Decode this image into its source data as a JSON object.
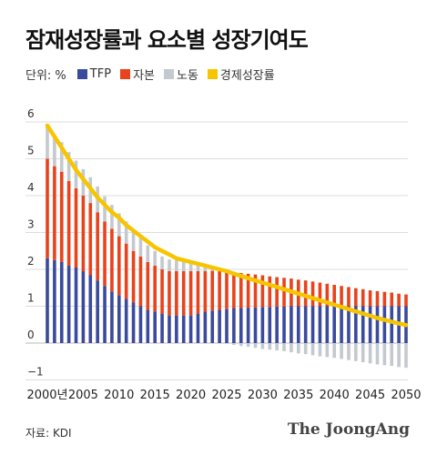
{
  "title": "잠재성장률과 요소별 성장기여도",
  "legend": {
    "unit_label": "단위: %",
    "items": [
      {
        "label": "TFP",
        "color": "#3a4a9c"
      },
      {
        "label": "자본",
        "color": "#e8431c"
      },
      {
        "label": "노동",
        "color": "#c4c9cf"
      },
      {
        "label": "경제성장률",
        "color": "#f7c500"
      }
    ]
  },
  "source": "자료: KDI",
  "brand": "The JoongAng",
  "chart_data": {
    "type": "bar",
    "stacked": true,
    "ylim": [
      -1.2,
      6
    ],
    "y_ticks": [
      6,
      5,
      4,
      3,
      2,
      1,
      0,
      -1
    ],
    "y_tick_labels": [
      "6",
      "5",
      "4",
      "3",
      "2",
      "1",
      "0",
      "−1"
    ],
    "x_tick_labels": [
      "2000년",
      "2005",
      "2010",
      "2015",
      "2020",
      "2025",
      "2030",
      "2035",
      "2040",
      "2045",
      "2050"
    ],
    "x_tick_years": [
      2000,
      2005,
      2010,
      2015,
      2020,
      2025,
      2030,
      2035,
      2040,
      2045,
      2050
    ],
    "years": [
      2000,
      2001,
      2002,
      2003,
      2004,
      2005,
      2006,
      2007,
      2008,
      2009,
      2010,
      2011,
      2012,
      2013,
      2014,
      2015,
      2016,
      2017,
      2018,
      2019,
      2020,
      2021,
      2022,
      2023,
      2024,
      2025,
      2026,
      2027,
      2028,
      2029,
      2030,
      2031,
      2032,
      2033,
      2034,
      2035,
      2036,
      2037,
      2038,
      2039,
      2040,
      2041,
      2042,
      2043,
      2044,
      2045,
      2046,
      2047,
      2048,
      2049,
      2050
    ],
    "series": [
      {
        "name": "TFP",
        "color": "#3a4a9c",
        "values": [
          2.3,
          2.25,
          2.2,
          2.1,
          2.05,
          1.95,
          1.85,
          1.7,
          1.55,
          1.4,
          1.3,
          1.2,
          1.1,
          1.0,
          0.9,
          0.85,
          0.8,
          0.75,
          0.75,
          0.75,
          0.75,
          0.8,
          0.85,
          0.88,
          0.9,
          0.92,
          0.95,
          0.95,
          0.96,
          0.97,
          0.98,
          0.98,
          0.99,
          0.99,
          1.0,
          1.0,
          1.0,
          1.0,
          1.0,
          1.0,
          1.0,
          1.0,
          1.0,
          1.0,
          1.0,
          1.0,
          1.0,
          1.0,
          1.0,
          1.0,
          1.0
        ]
      },
      {
        "name": "자본",
        "color": "#e8431c",
        "values": [
          2.7,
          2.55,
          2.45,
          2.3,
          2.15,
          2.05,
          1.95,
          1.85,
          1.75,
          1.7,
          1.6,
          1.5,
          1.4,
          1.35,
          1.3,
          1.25,
          1.2,
          1.2,
          1.2,
          1.2,
          1.2,
          1.15,
          1.1,
          1.08,
          1.05,
          1.02,
          0.98,
          0.95,
          0.92,
          0.89,
          0.86,
          0.83,
          0.8,
          0.78,
          0.75,
          0.72,
          0.7,
          0.67,
          0.64,
          0.61,
          0.58,
          0.55,
          0.52,
          0.49,
          0.46,
          0.43,
          0.41,
          0.39,
          0.37,
          0.34,
          0.32
        ]
      },
      {
        "name": "노동",
        "color": "#c4c9cf",
        "values": [
          0.9,
          0.85,
          0.8,
          0.78,
          0.75,
          0.72,
          0.7,
          0.7,
          0.68,
          0.65,
          0.62,
          0.6,
          0.55,
          0.5,
          0.45,
          0.4,
          0.35,
          0.32,
          0.3,
          0.25,
          0.2,
          0.15,
          0.1,
          0.05,
          0.0,
          -0.02,
          -0.05,
          -0.08,
          -0.1,
          -0.13,
          -0.16,
          -0.18,
          -0.2,
          -0.22,
          -0.25,
          -0.28,
          -0.3,
          -0.33,
          -0.36,
          -0.38,
          -0.4,
          -0.43,
          -0.46,
          -0.49,
          -0.52,
          -0.55,
          -0.58,
          -0.6,
          -0.62,
          -0.65,
          -0.67
        ]
      },
      {
        "name": "경제성장률",
        "color": "#f7c500",
        "type": "line",
        "values": [
          5.9,
          5.6,
          5.3,
          5.0,
          4.7,
          4.45,
          4.2,
          3.95,
          3.75,
          3.55,
          3.4,
          3.2,
          3.05,
          2.9,
          2.75,
          2.6,
          2.5,
          2.4,
          2.3,
          2.25,
          2.2,
          2.15,
          2.1,
          2.05,
          2.0,
          1.95,
          1.88,
          1.82,
          1.76,
          1.7,
          1.64,
          1.58,
          1.52,
          1.46,
          1.4,
          1.34,
          1.28,
          1.22,
          1.16,
          1.1,
          1.04,
          0.98,
          0.92,
          0.86,
          0.8,
          0.74,
          0.68,
          0.63,
          0.58,
          0.53,
          0.49
        ]
      }
    ]
  }
}
